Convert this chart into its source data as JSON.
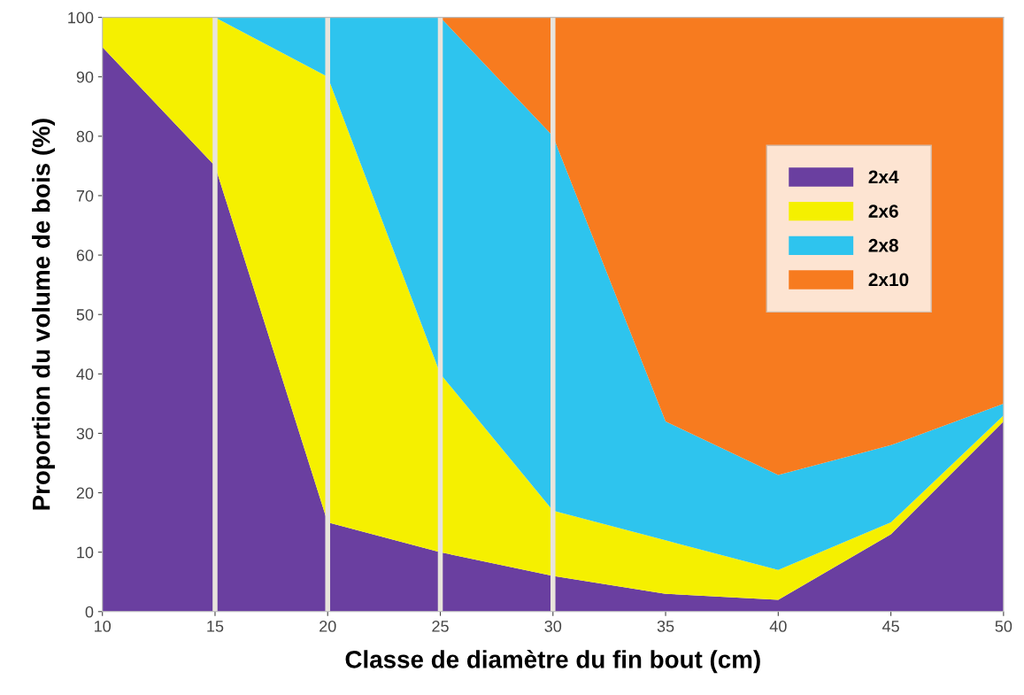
{
  "chart_data": {
    "type": "area",
    "stacked": true,
    "xlabel": "Classe de diamètre du fin bout (cm)",
    "ylabel": "Proportion du volume de bois (%)",
    "x": [
      10,
      15,
      20,
      25,
      30,
      35,
      40,
      45,
      50
    ],
    "series": [
      {
        "name": "2x4",
        "color": "#6a3fa0",
        "values": [
          95,
          75,
          15,
          10,
          6,
          3,
          2,
          13,
          32
        ]
      },
      {
        "name": "2x6",
        "color": "#f5f000",
        "values": [
          5,
          25,
          75,
          30,
          11,
          9,
          5,
          2,
          1
        ]
      },
      {
        "name": "2x8",
        "color": "#2ec4ee",
        "values": [
          0,
          0,
          10,
          60,
          63,
          20,
          16,
          13,
          2
        ]
      },
      {
        "name": "2x10",
        "color": "#f77b1f",
        "values": [
          0,
          0,
          0,
          0,
          20,
          68,
          77,
          72,
          65
        ]
      }
    ],
    "xlim": [
      10,
      50
    ],
    "xticks": [
      10,
      15,
      20,
      25,
      30,
      35,
      40,
      45,
      50
    ],
    "ylim": [
      0,
      100
    ],
    "yticks": [
      0,
      10,
      20,
      30,
      40,
      50,
      60,
      70,
      80,
      90,
      100
    ],
    "ref_lines": [
      {
        "axis": "x",
        "value": 15,
        "color": "#e8e4dc"
      },
      {
        "axis": "x",
        "value": 20,
        "color": "#e8e4dc"
      },
      {
        "axis": "x",
        "value": 25,
        "color": "#e8e4dc"
      },
      {
        "axis": "x",
        "value": 30,
        "color": "#e8e4dc"
      }
    ],
    "grid": false,
    "legend": "right"
  }
}
